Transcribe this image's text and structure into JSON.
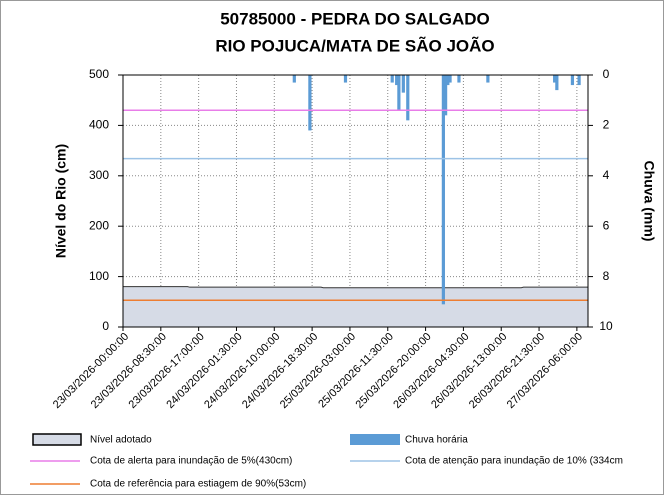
{
  "chart_data": {
    "type": "bar-area",
    "title": [
      "50785000 - PEDRA DO SALGADO",
      "RIO POJUCA/MATA DE SÃO JOÃO"
    ],
    "y_label": "Nível do Rio (cm)",
    "y2_label": "Chuva (mm)",
    "categories": [
      "23/03/2026-00:00:00",
      null,
      null,
      null,
      null,
      null,
      null,
      null,
      null,
      null,
      null,
      null,
      null,
      null,
      null,
      null,
      null,
      "23/03/2026-08:30:00",
      null,
      null,
      null,
      null,
      null,
      null,
      null,
      null,
      null,
      null,
      null,
      null,
      null,
      null,
      null,
      null,
      "23/03/2026-17:00:00",
      null,
      null,
      null,
      null,
      null,
      null,
      null,
      null,
      null,
      null,
      null,
      null,
      null,
      null,
      null,
      null,
      "24/03/2026-01:30:00",
      null,
      null,
      null,
      null,
      null,
      null,
      null,
      null,
      null,
      null,
      null,
      null,
      null,
      null,
      null,
      null,
      "24/03/2026-10:00:00",
      null,
      null,
      null,
      null,
      null,
      null,
      null,
      null,
      null,
      null,
      null,
      null,
      null,
      null,
      null,
      null,
      "24/03/2026-18:30:00",
      null,
      null,
      null,
      null,
      null,
      null,
      null,
      null,
      null,
      null,
      null,
      null,
      null,
      null,
      null,
      null,
      "25/03/2026-03:00:00",
      null,
      null,
      null,
      null,
      null,
      null,
      null,
      null,
      null,
      null,
      null,
      null,
      null,
      null,
      null,
      null,
      "25/03/2026-11:30:00",
      null,
      null,
      null,
      null,
      null,
      null,
      null,
      null,
      null,
      null,
      null,
      null,
      null,
      null,
      null,
      null,
      "25/03/2026-20:00:00",
      null,
      null,
      null,
      null,
      null,
      null,
      null,
      null,
      null,
      null,
      null,
      null,
      null,
      null,
      null,
      null,
      "26/03/2026-04:30:00",
      null,
      null,
      null,
      null,
      null,
      null,
      null,
      null,
      null,
      null,
      null,
      null,
      null,
      null,
      null,
      null,
      "26/03/2026-13:00:00",
      null,
      null,
      null,
      null,
      null,
      null,
      null,
      null,
      null,
      null,
      null,
      null,
      null,
      null,
      null,
      null,
      "26/03/2026-21:30:00",
      null,
      null,
      null,
      null,
      null,
      null,
      null,
      null,
      null,
      null,
      null,
      null,
      null,
      null,
      null,
      null,
      "27/03/2026-06:00:00",
      null,
      null,
      null,
      null,
      null
    ],
    "series": [
      {
        "name": "Nível adotado",
        "type": "area",
        "color": "#d6dbe6",
        "values": [
          80,
          80,
          80,
          80,
          80,
          80,
          80,
          80,
          80,
          80,
          80,
          80,
          80,
          80,
          80,
          80,
          80,
          80,
          80,
          80,
          80,
          80,
          80,
          80,
          80,
          80,
          80,
          80,
          80,
          80,
          79,
          79,
          79,
          79,
          79,
          79,
          79,
          79,
          79,
          79,
          79,
          79,
          79,
          79,
          79,
          79,
          79,
          79,
          79,
          79,
          79,
          79,
          79,
          79,
          79,
          79,
          79,
          79,
          79,
          79,
          79,
          79,
          79,
          79,
          79,
          79,
          79,
          79,
          79,
          79,
          79,
          79,
          79,
          79,
          79,
          79,
          79,
          79,
          79,
          79,
          79,
          79,
          79,
          79,
          79,
          79,
          79,
          79,
          79,
          79,
          78,
          78,
          78,
          78,
          78,
          78,
          78,
          78,
          78,
          78,
          78,
          78,
          78,
          78,
          78,
          78,
          78,
          78,
          78,
          78,
          78,
          78,
          78,
          78,
          78,
          78,
          78,
          78,
          78,
          78,
          78,
          78,
          78,
          78,
          78,
          78,
          78,
          78,
          78,
          78,
          78,
          78,
          78,
          78,
          78,
          78,
          78,
          78,
          78,
          78,
          78,
          78,
          78,
          78,
          78,
          78,
          78,
          78,
          78,
          78,
          78,
          78,
          78,
          78,
          78,
          78,
          78,
          78,
          78,
          78,
          78,
          78,
          78,
          78,
          78,
          78,
          78,
          78,
          78,
          78,
          78,
          78,
          78,
          78,
          78,
          78,
          78,
          78,
          78,
          78,
          79,
          79,
          79,
          79,
          79,
          79,
          79,
          79,
          79,
          79,
          79,
          79,
          79,
          79,
          79,
          79,
          79,
          79,
          79,
          79,
          79,
          79,
          79,
          79,
          79,
          79,
          79,
          79,
          79,
          79
        ]
      },
      {
        "name": "Chuva horária",
        "type": "bar",
        "axis": "y2",
        "color": "#5b9bd5",
        "values": [
          0,
          0,
          0,
          0,
          0,
          0,
          0,
          0,
          0,
          0,
          0,
          0,
          0,
          0,
          0,
          0,
          0,
          0,
          0,
          0,
          0,
          0,
          0,
          0,
          0,
          0,
          0,
          0,
          0,
          0,
          0,
          0,
          0,
          0,
          0,
          0,
          0,
          0,
          0,
          0,
          0,
          0,
          0,
          0,
          0,
          0,
          0,
          0,
          0,
          0,
          0,
          0,
          0,
          0,
          0,
          0,
          0,
          0,
          0,
          0,
          0,
          0,
          0,
          0,
          0,
          0,
          0,
          0,
          0,
          0,
          0,
          0,
          0,
          0,
          0,
          0,
          0,
          0.3,
          0,
          0,
          0,
          0,
          0,
          0,
          2.2,
          0,
          0,
          0,
          0,
          0,
          0,
          0,
          0,
          0,
          0,
          0,
          0,
          0,
          0,
          0,
          0.3,
          0,
          0,
          0,
          0,
          0,
          0,
          0,
          0,
          0,
          0,
          0,
          0,
          0,
          0,
          0,
          0,
          0,
          0,
          0,
          0,
          0.3,
          0,
          0.4,
          1.4,
          0,
          0.7,
          0,
          1.8,
          0,
          0,
          0,
          0,
          0,
          0,
          0,
          0,
          0,
          0,
          0,
          0,
          0,
          0,
          0,
          9.1,
          1.6,
          0.4,
          0.3,
          0,
          0,
          0,
          0.3,
          0,
          0,
          0,
          0,
          0,
          0,
          0,
          0,
          0,
          0,
          0,
          0,
          0.3,
          0,
          0,
          0,
          0,
          0,
          0,
          0,
          0,
          0,
          0,
          0,
          0,
          0,
          0,
          0,
          0,
          0,
          0,
          0,
          0,
          0,
          0,
          0,
          0,
          0,
          0,
          0,
          0,
          0,
          0.3,
          0.6,
          0,
          0,
          0,
          0,
          0,
          0,
          0.4,
          0,
          0,
          0.4,
          0,
          0,
          0,
          0
        ]
      }
    ],
    "reference_lines": [
      {
        "name": "Cota de alerta para inundação de 5%(430cm)",
        "value": 430,
        "color": "#e87de8"
      },
      {
        "name": "Cota de atenção para inundação de 10% (334cm",
        "value": 334,
        "color": "#9dc3e6"
      },
      {
        "name": "Cota de referência para estiagem de 90%(53cm)",
        "value": 53,
        "color": "#ed7d31"
      }
    ],
    "ylim": [
      0,
      500
    ],
    "yticks": [
      0,
      100,
      200,
      300,
      400,
      500
    ],
    "y2lim": [
      0,
      10
    ],
    "y2ticks": [
      0,
      2,
      4,
      6,
      8,
      10
    ],
    "y2_inverted": true,
    "grid": true
  }
}
